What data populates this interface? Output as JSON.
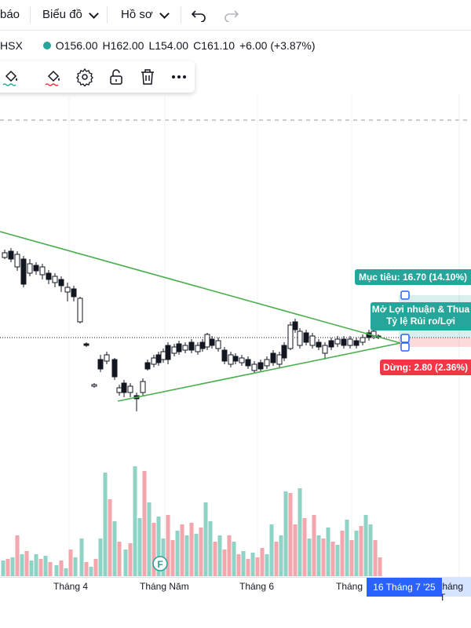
{
  "menu": {
    "item1_label": "báo",
    "item2_label": "Biểu đồ",
    "item3_label": "Hồ sơ"
  },
  "symbol": {
    "exchange_suffix": "HSX",
    "open": "O156.00",
    "high": "H162.00",
    "low": "L154.00",
    "close": "C161.10",
    "change": "+6.00 (+3.87%)",
    "status_color": "#26a69a"
  },
  "toolbar": {
    "icons": [
      "paint-bucket-icon",
      "paint-bucket-icon",
      "gear-icon",
      "lock-icon",
      "trash-icon",
      "more-icon"
    ]
  },
  "position_tool": {
    "target_label": "Mục tiêu: 16.70 (14.10%)",
    "pnl_label_line1": "Mở Lợi nhuận & Thua",
    "pnl_label_line2": "Tỷ lệ Rủi ro/Lợi",
    "stop_label": "Dừng: 2.80 (2.36%)",
    "target_color": "#26a69a",
    "stop_color": "#f23645"
  },
  "xaxis": {
    "labels": [
      "Tháng 4",
      "Tháng Năm",
      "Tháng 6",
      "Tháng",
      "tháng T"
    ],
    "current_date": "16 Tháng 7 '25"
  },
  "marker": {
    "letter": "F"
  },
  "colors": {
    "up": "#26a69a",
    "down": "#ef5350",
    "trendline": "#4caf50",
    "vol_up": "#8fd3c7",
    "vol_down": "#f4a6ad"
  },
  "chart_data": {
    "type": "candlestick",
    "candles": [
      {
        "o": 0.4,
        "c": 0.41
      },
      {
        "o": 0.39,
        "c": 0.42
      },
      {
        "o": 0.42,
        "c": 0.38
      },
      {
        "o": 0.38,
        "c": 0.3
      },
      {
        "o": 0.3,
        "c": 0.31
      },
      {
        "o": 0.3,
        "c": 0.35
      },
      {
        "o": 0.35,
        "c": 0.33
      },
      {
        "o": 0.34,
        "c": 0.3
      },
      {
        "o": 0.31,
        "c": 0.28
      },
      {
        "o": 0.29,
        "c": 0.26
      },
      {
        "o": 0.28,
        "c": 0.22
      },
      {
        "o": 0.22,
        "c": 0.2
      },
      {
        "o": 0.2,
        "c": 0.18
      },
      {
        "o": 0.18,
        "c": 0.15
      }
    ]
  }
}
